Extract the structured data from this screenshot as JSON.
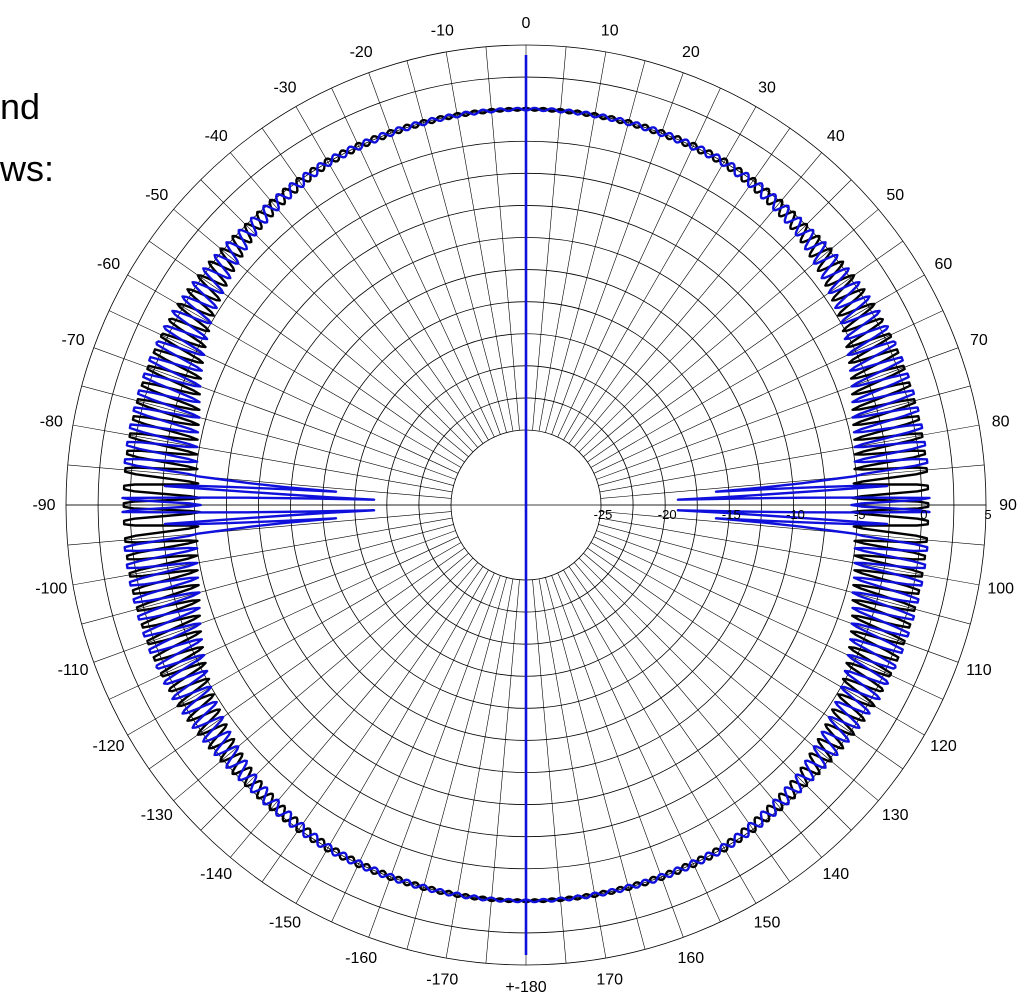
{
  "cropped_text": {
    "line1": "nd",
    "line2": "ws:"
  },
  "chart_data": {
    "type": "line",
    "subtype": "polar",
    "title": "",
    "angle_unit": "degrees",
    "angle_range": [
      -180,
      180
    ],
    "angle_grid_step": 5,
    "angle_labels": [
      "0",
      "10",
      "20",
      "30",
      "40",
      "50",
      "60",
      "70",
      "80",
      "90",
      "100",
      "110",
      "120",
      "130",
      "140",
      "150",
      "160",
      "170",
      "+-180",
      "-170",
      "-160",
      "-150",
      "-140",
      "-130",
      "-120",
      "-110",
      "-100",
      "-90",
      "-80",
      "-70",
      "-60",
      "-50",
      "-40",
      "-30",
      "-20",
      "-10"
    ],
    "angle_label_values": [
      0,
      10,
      20,
      30,
      40,
      50,
      60,
      70,
      80,
      90,
      100,
      110,
      120,
      130,
      140,
      150,
      160,
      170,
      180,
      -170,
      -160,
      -150,
      -140,
      -130,
      -120,
      -110,
      -100,
      -90,
      -80,
      -70,
      -60,
      -50,
      -40,
      -30,
      -20,
      -10
    ],
    "radial_range": [
      -25,
      5
    ],
    "radial_ticks": [
      -25,
      -20,
      -15,
      -10,
      -5,
      0,
      5
    ],
    "radial_labels": [
      "-25",
      "-20",
      "-15",
      "-10",
      "-5",
      "0",
      "5"
    ],
    "grid": true,
    "colors": {
      "series_black": "#000000",
      "series_blue": "#1010dd",
      "grid": "#000000"
    },
    "series": [
      {
        "color": "#000000",
        "shape": "oscillating",
        "baseline": [
          [
            0,
            0
          ],
          [
            30,
            0
          ],
          [
            45,
            -0.5
          ],
          [
            60,
            -1
          ],
          [
            75,
            -1.5
          ],
          [
            90,
            -1.5
          ],
          [
            105,
            -1.5
          ],
          [
            120,
            -1
          ],
          [
            135,
            -0.5
          ],
          [
            150,
            0
          ],
          [
            180,
            0
          ]
        ],
        "ripple_amplitude": [
          [
            0,
            0.1
          ],
          [
            30,
            0.3
          ],
          [
            45,
            0.6
          ],
          [
            60,
            1.5
          ],
          [
            75,
            3
          ],
          [
            90,
            4
          ],
          [
            105,
            3
          ],
          [
            120,
            1.5
          ],
          [
            135,
            0.6
          ],
          [
            150,
            0.3
          ],
          [
            180,
            0.1
          ]
        ],
        "lobe_spacing_deg": 2.5,
        "peak_value": 0.5
      },
      {
        "color": "#1010dd",
        "shape": "oscillating",
        "baseline": [
          [
            0,
            0
          ],
          [
            30,
            0
          ],
          [
            45,
            -0.5
          ],
          [
            60,
            -1
          ],
          [
            75,
            -1.5
          ],
          [
            90,
            -1.5
          ],
          [
            105,
            -1.5
          ],
          [
            120,
            -1
          ],
          [
            135,
            -0.5
          ],
          [
            150,
            0
          ],
          [
            180,
            0
          ]
        ],
        "ripple_amplitude": [
          [
            0,
            0.1
          ],
          [
            30,
            0.3
          ],
          [
            45,
            0.6
          ],
          [
            60,
            1.5
          ],
          [
            75,
            3
          ],
          [
            90,
            4
          ],
          [
            105,
            3
          ],
          [
            120,
            1.5
          ],
          [
            135,
            0.6
          ],
          [
            150,
            0.3
          ],
          [
            180,
            0.1
          ]
        ],
        "lobe_spacing_deg": 2.5,
        "phase_offset_deg": 1.25,
        "deep_nulls": [
          {
            "angle": 86,
            "value": -16
          },
          {
            "angle": 88,
            "value": -19
          },
          {
            "angle": 92,
            "value": -19
          },
          {
            "angle": 94,
            "value": -16
          }
        ],
        "axial_spike": [
          {
            "angle": 0,
            "value": 5
          },
          {
            "angle": 180,
            "value": 5
          }
        ]
      }
    ]
  }
}
